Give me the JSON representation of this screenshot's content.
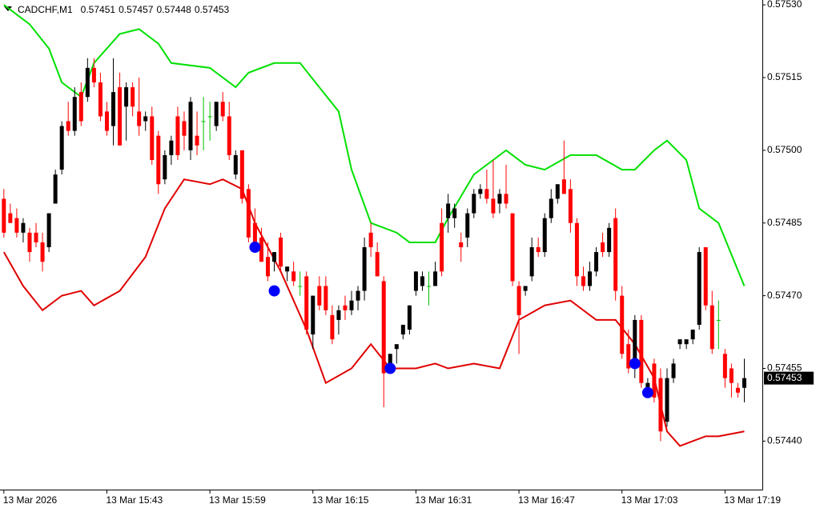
{
  "chart_data": {
    "type": "candlestick",
    "symbol": "CADCHF,M1",
    "header_ohlc": [
      0.57451,
      0.57457,
      0.57448,
      0.57453
    ],
    "ylim": [
      0.5743,
      0.57531
    ],
    "xlim": [
      -0.6,
      117.8
    ],
    "yticks": [
      {
        "value": 0.5753,
        "label": "0.57530"
      },
      0.57515,
      {
        "value": 0.575,
        "label": "0.57500"
      },
      0.57485,
      {
        "value": 0.5747,
        "label": "0.57470"
      },
      0.57455,
      {
        "value": 0.5744,
        "label": "0.57440"
      }
    ],
    "xticks": [
      {
        "value": 0,
        "label": "13 Mar 2026"
      },
      {
        "value": 16,
        "label": "13 Mar 15:43"
      },
      {
        "value": 32,
        "label": "13 Mar 15:59"
      },
      {
        "value": 48,
        "label": "13 Mar 16:15"
      },
      {
        "value": 64,
        "label": "13 Mar 16:31"
      },
      {
        "value": 80,
        "label": "13 Mar 16:47"
      },
      {
        "value": 96,
        "label": "13 Mar 17:03"
      },
      {
        "value": 112,
        "label": "13 Mar 17:19"
      }
    ],
    "current_price": 0.57453,
    "up_color": "#000000",
    "down_color": "#ff0000",
    "doji_color": "#00c000",
    "open": [
      0.5749,
      0.57487,
      0.57486,
      0.57483,
      0.57483,
      0.57483,
      0.57481,
      0.5748,
      0.57489,
      0.57496,
      0.57506,
      0.57504,
      0.57512,
      0.57511,
      0.57517,
      0.57514,
      0.57508,
      0.57505,
      0.57513,
      0.57509,
      0.57513,
      0.57508,
      0.57506,
      0.57507,
      0.57503,
      0.57494,
      0.57499,
      0.57507,
      0.57506,
      0.575,
      0.57503,
      0.57506,
      0.57507,
      0.57505,
      0.5751,
      0.57507,
      0.57495,
      0.575,
      0.57492,
      0.57485,
      0.57482,
      0.57478,
      0.57477,
      0.57482,
      0.57475,
      0.57475,
      0.57472,
      0.57474,
      0.57462,
      0.57472,
      0.57472,
      0.57466,
      0.57465,
      0.57468,
      0.57467,
      0.57469,
      0.57471,
      0.57483,
      0.57479,
      0.57473,
      0.57456,
      0.57459,
      0.57462,
      0.57463,
      0.57471,
      0.57472,
      0.57472,
      0.57472,
      0.57485,
      0.57486,
      0.57486,
      0.57481,
      0.57482,
      0.57487,
      0.57491,
      0.57492,
      0.5749,
      0.57489,
      0.57491,
      0.57487,
      0.57472,
      0.57471,
      0.57474,
      0.5748,
      0.57479,
      0.57486,
      0.5749,
      0.57494,
      0.57492,
      0.57485,
      0.57474,
      0.57472,
      0.57475,
      0.57481,
      0.57479,
      0.57486,
      0.5747,
      0.5746,
      0.57455,
      0.57465,
      0.57451,
      0.57456,
      0.57453,
      0.57444,
      0.57453,
      0.5746,
      0.5746,
      0.57461,
      0.57464,
      0.5748,
      0.57468,
      0.57465,
      0.57458,
      0.57455,
      0.57451,
      0.57451
    ],
    "high": [
      0.57492,
      0.57489,
      0.57488,
      0.57486,
      0.57484,
      0.57485,
      0.57483,
      0.57487,
      0.57496,
      0.57506,
      0.5751,
      0.57513,
      0.57514,
      0.57519,
      0.57519,
      0.57516,
      0.5751,
      0.57519,
      0.57516,
      0.57514,
      0.57514,
      0.57515,
      0.57508,
      0.57509,
      0.57504,
      0.575,
      0.57503,
      0.57509,
      0.57508,
      0.57511,
      0.57508,
      0.57511,
      0.5751,
      0.5751,
      0.57512,
      0.5751,
      0.575,
      0.575,
      0.57493,
      0.57488,
      0.57484,
      0.57481,
      0.57479,
      0.57483,
      0.57476,
      0.57477,
      0.57475,
      0.57475,
      0.5747,
      0.57474,
      0.57474,
      0.57468,
      0.57468,
      0.5747,
      0.57471,
      0.57472,
      0.57482,
      0.57485,
      0.57481,
      0.57474,
      0.57458,
      0.5746,
      0.57464,
      0.57468,
      0.57475,
      0.57475,
      0.57475,
      0.57477,
      0.57488,
      0.57491,
      0.57489,
      0.57483,
      0.57488,
      0.57492,
      0.57493,
      0.57496,
      0.57498,
      0.57492,
      0.57497,
      0.57487,
      0.57473,
      0.57472,
      0.57482,
      0.57482,
      0.57487,
      0.57492,
      0.57493,
      0.57502,
      0.57494,
      0.57486,
      0.57476,
      0.57477,
      0.5748,
      0.57483,
      0.57485,
      0.57488,
      0.57472,
      0.57463,
      0.57466,
      0.57466,
      0.57453,
      0.57457,
      0.57455,
      0.57455,
      0.57457,
      0.57461,
      0.57461,
      0.57463,
      0.5748,
      0.5748,
      0.57471,
      0.57469,
      0.57459,
      0.57456,
      0.57452,
      0.57457
    ],
    "low": [
      0.57482,
      0.57485,
      0.57482,
      0.57481,
      0.57477,
      0.5748,
      0.57475,
      0.57479,
      0.57489,
      0.57495,
      0.57503,
      0.57503,
      0.57505,
      0.5751,
      0.57513,
      0.57506,
      0.57503,
      0.57501,
      0.57501,
      0.57502,
      0.57507,
      0.57503,
      0.57504,
      0.57497,
      0.57491,
      0.57493,
      0.57497,
      0.57498,
      0.575,
      0.57498,
      0.57499,
      0.575,
      0.57502,
      0.57504,
      0.57506,
      0.57498,
      0.57494,
      0.57489,
      0.57481,
      0.5748,
      0.57477,
      0.57473,
      0.57475,
      0.57475,
      0.57473,
      0.57472,
      0.5747,
      0.57462,
      0.57459,
      0.57467,
      0.57466,
      0.5746,
      0.57462,
      0.57465,
      0.57466,
      0.57467,
      0.57469,
      0.57478,
      0.57474,
      0.57447,
      0.57455,
      0.57456,
      0.57461,
      0.57462,
      0.5747,
      0.57471,
      0.57468,
      0.57472,
      0.57474,
      0.57483,
      0.57484,
      0.57477,
      0.5748,
      0.57486,
      0.5749,
      0.57489,
      0.57486,
      0.57487,
      0.57488,
      0.57472,
      0.57458,
      0.5747,
      0.57473,
      0.57478,
      0.57478,
      0.57485,
      0.57489,
      0.57491,
      0.57483,
      0.57472,
      0.57471,
      0.57471,
      0.57474,
      0.57478,
      0.57478,
      0.57469,
      0.57457,
      0.57454,
      0.57453,
      0.57451,
      0.57449,
      0.57448,
      0.5744,
      0.57443,
      0.57452,
      0.57459,
      0.57459,
      0.5746,
      0.57463,
      0.57467,
      0.57458,
      0.57459,
      0.57451,
      0.57449,
      0.57449,
      0.57448
    ],
    "close": [
      0.57483,
      0.57485,
      0.57483,
      0.57485,
      0.57479,
      0.57481,
      0.57477,
      0.57487,
      0.57495,
      0.57505,
      0.57504,
      0.57511,
      0.57506,
      0.57517,
      0.57514,
      0.57507,
      0.57504,
      0.57512,
      0.57501,
      0.57513,
      0.57509,
      0.57505,
      0.57507,
      0.57498,
      0.57493,
      0.57499,
      0.57502,
      0.57499,
      0.57503,
      0.5751,
      0.57501,
      0.57506,
      0.57507,
      0.5751,
      0.57507,
      0.57499,
      0.57499,
      0.5749,
      0.57482,
      0.57481,
      0.57477,
      0.57474,
      0.57479,
      0.57476,
      0.57476,
      0.57473,
      0.57472,
      0.57463,
      0.5747,
      0.57468,
      0.57467,
      0.57461,
      0.57467,
      0.57467,
      0.57469,
      0.57471,
      0.5748,
      0.5748,
      0.57474,
      0.57454,
      0.57458,
      0.5746,
      0.57464,
      0.57468,
      0.57475,
      0.57474,
      0.57472,
      0.57475,
      0.57475,
      0.57489,
      0.57488,
      0.5748,
      0.57487,
      0.57491,
      0.57492,
      0.5749,
      0.57487,
      0.57491,
      0.57489,
      0.57473,
      0.57466,
      0.57472,
      0.5748,
      0.57479,
      0.57486,
      0.5749,
      0.57493,
      0.57491,
      0.57485,
      0.57474,
      0.57472,
      0.57475,
      0.57479,
      0.57479,
      0.57484,
      0.57471,
      0.57458,
      0.57455,
      0.57465,
      0.57452,
      0.57452,
      0.57449,
      0.57442,
      0.57453,
      0.57456,
      0.57461,
      0.57461,
      0.57463,
      0.57479,
      0.57468,
      0.57459,
      0.57465,
      0.57453,
      0.57452,
      0.5745,
      0.57453
    ],
    "series": [
      {
        "color": "#00e000",
        "x": [
          0,
          4,
          7,
          9,
          12,
          14,
          18,
          21,
          24,
          26,
          32,
          36,
          38,
          42,
          46,
          49,
          52,
          54,
          57,
          61,
          63,
          67,
          69,
          73,
          78,
          81,
          84,
          88,
          92,
          96,
          98,
          101,
          103,
          106,
          108,
          111,
          115
        ],
        "values": [
          0.5753,
          0.57526,
          0.57521,
          0.57514,
          0.57511,
          0.57518,
          0.57524,
          0.57525,
          0.57522,
          0.57518,
          0.57517,
          0.57513,
          0.57516,
          0.57518,
          0.57518,
          0.57513,
          0.57508,
          0.57496,
          0.57485,
          0.57483,
          0.57481,
          0.57481,
          0.57486,
          0.57495,
          0.575,
          0.57497,
          0.57496,
          0.57499,
          0.57499,
          0.57496,
          0.57496,
          0.575,
          0.57502,
          0.57498,
          0.57488,
          0.57485,
          0.57472
        ]
      },
      {
        "color": "#e00000",
        "x": [
          0,
          3,
          6,
          9,
          12,
          14,
          18,
          22,
          25,
          28,
          32,
          34,
          37,
          39,
          43,
          47,
          50,
          54,
          57,
          60,
          64,
          67,
          69,
          73,
          77,
          80,
          84,
          88,
          92,
          95,
          98,
          101,
          103,
          105,
          109,
          111,
          115
        ],
        "values": [
          0.57479,
          0.57472,
          0.57467,
          0.5747,
          0.57471,
          0.57468,
          0.57471,
          0.57478,
          0.57488,
          0.57494,
          0.57493,
          0.57494,
          0.57492,
          0.57485,
          0.57475,
          0.57463,
          0.57452,
          0.57455,
          0.5746,
          0.57455,
          0.57455,
          0.57456,
          0.57455,
          0.57456,
          0.57455,
          0.57465,
          0.57468,
          0.57469,
          0.57465,
          0.57465,
          0.5746,
          0.57453,
          0.57442,
          0.57439,
          0.57441,
          0.57441,
          0.57442
        ]
      }
    ],
    "signals": {
      "color": "#0000ff",
      "x": [
        39,
        42,
        60,
        98,
        100
      ],
      "values": [
        0.5748,
        0.57471,
        0.57455,
        0.57456,
        0.5745
      ]
    }
  }
}
